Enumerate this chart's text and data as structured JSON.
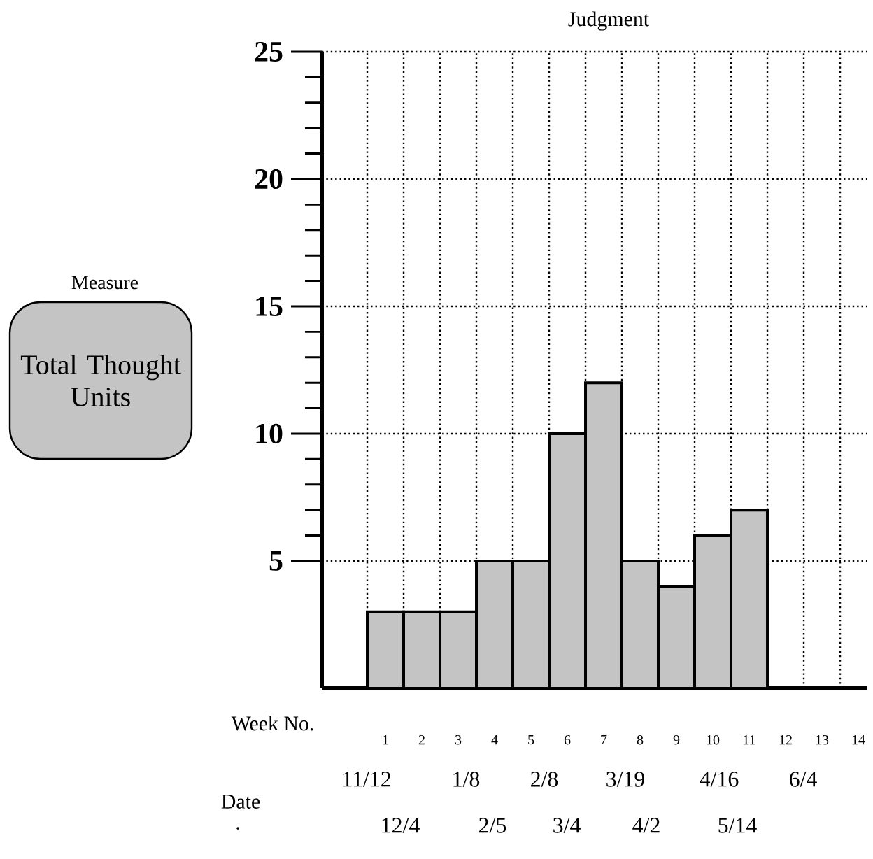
{
  "chart_data": {
    "type": "bar",
    "title": "Judgment",
    "xlabel": "Week No.",
    "ylabel": "Total Thought Units",
    "annotations": [
      "Measure",
      "Date",
      ".",
      "11/12",
      "12/4",
      "1/8",
      "2/5",
      "2/8",
      "3/4",
      "3/19",
      "4/2",
      "4/16",
      "5/14",
      "6/4"
    ],
    "categories": [
      "1",
      "2",
      "3",
      "4",
      "5",
      "6",
      "7",
      "8",
      "9",
      "10",
      "11",
      "12",
      "13",
      "14"
    ],
    "values": [
      3,
      3,
      3,
      5,
      5,
      10,
      12,
      5,
      4,
      6,
      7,
      null,
      null,
      null
    ],
    "color": "#c4c4c4",
    "ylim": [
      0,
      25
    ],
    "yticks": [
      5,
      10,
      15,
      20,
      25
    ],
    "grid": true
  }
}
